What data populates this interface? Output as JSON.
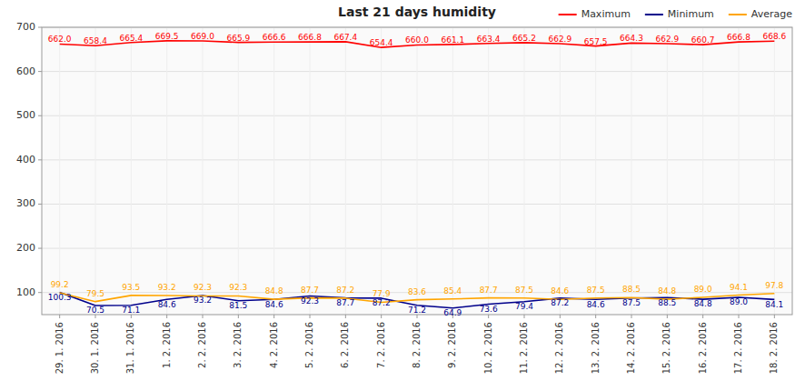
{
  "chart_data": {
    "type": "line",
    "title": "Last 21 days humidity",
    "categories": [
      "29. 1. 2016",
      "30. 1. 2016",
      "31. 1. 2016",
      "1. 2. 2016",
      "2. 2. 2016",
      "3. 2. 2016",
      "4. 2. 2016",
      "5. 2. 2016",
      "6. 2. 2016",
      "7. 2. 2016",
      "8. 2. 2016",
      "9. 2. 2016",
      "10. 2. 2016",
      "11. 2. 2016",
      "12. 2. 2016",
      "13. 2. 2016",
      "14. 2. 2016",
      "15. 2. 2016",
      "16. 2. 2016",
      "17. 2. 2016",
      "18. 2. 2016"
    ],
    "series": [
      {
        "name": "Maximum",
        "color": "#ff0000",
        "values": [
          662.0,
          658.4,
          665.4,
          669.5,
          669.0,
          665.9,
          666.6,
          666.8,
          667.4,
          654.4,
          660.0,
          661.1,
          663.4,
          665.2,
          662.9,
          657.5,
          664.3,
          662.9,
          660.7,
          666.8,
          668.6
        ],
        "value_labels": [
          "662.0",
          "658.4",
          "665.4",
          "669.5",
          "669.0",
          "665.9",
          "666.6",
          "666.8",
          "667.4",
          "654.4",
          "660.0",
          "661.1",
          "663.4",
          "665.2",
          "662.9",
          "657.5",
          "664.3",
          "662.9",
          "660.7",
          "666.8",
          "668.6"
        ]
      },
      {
        "name": "Minimum",
        "color": "#00008b",
        "values": [
          100.3,
          70.5,
          71.1,
          84.6,
          93.2,
          81.5,
          84.6,
          92.3,
          87.7,
          87.2,
          71.2,
          64.9,
          73.6,
          79.4,
          87.2,
          84.6,
          87.5,
          88.5,
          84.8,
          89.0,
          84.1
        ],
        "value_labels": [
          "100.3",
          "70.5",
          "71.1",
          "84.6",
          "93.2",
          "81.5",
          "84.6",
          "92.3",
          "87.7",
          "87.2",
          "71.2",
          "64.9",
          "73.6",
          "79.4",
          "87.2",
          "84.6",
          "87.5",
          "88.5",
          "84.8",
          "89.0",
          "84.1"
        ]
      },
      {
        "name": "Average",
        "color": "#ffa500",
        "values": [
          99.2,
          79.5,
          93.5,
          93.2,
          92.3,
          92.3,
          84.8,
          87.7,
          87.2,
          77.9,
          83.6,
          85.4,
          87.7,
          87.5,
          84.6,
          87.5,
          88.5,
          84.8,
          89.0,
          94.1,
          97.8
        ],
        "value_labels": [
          "99.2",
          "79.5",
          "93.5",
          "93.2",
          "92.3",
          "92.3",
          "84.8",
          "87.7",
          "87.2",
          "77.9",
          "83.6",
          "85.4",
          "87.7",
          "87.5",
          "84.6",
          "87.5",
          "88.5",
          "84.8",
          "89.0",
          "94.1",
          "97.8"
        ]
      }
    ],
    "ylim": [
      50,
      700
    ],
    "yticks": [
      100,
      200,
      300,
      400,
      500,
      600,
      700
    ],
    "grid": true,
    "legend": "upper right",
    "data_labels": true
  }
}
